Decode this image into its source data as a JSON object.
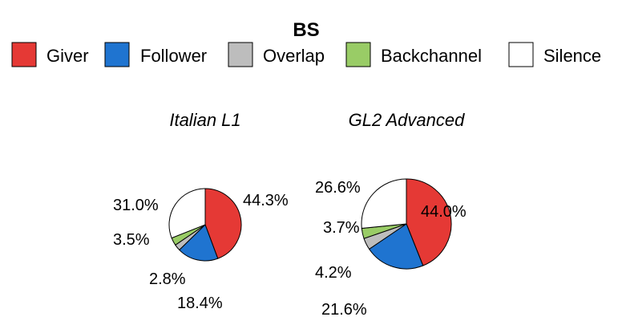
{
  "chart_data": {
    "type": "pie",
    "title": "BS",
    "legend": {
      "placement": "top",
      "entries": [
        {
          "label": "Giver",
          "color": "#e53935"
        },
        {
          "label": "Follower",
          "color": "#1f74d0"
        },
        {
          "label": "Overlap",
          "color": "#bdbdbd"
        },
        {
          "label": "Backchannel",
          "color": "#99cc66"
        },
        {
          "label": "Silence",
          "color": "#ffffff"
        }
      ]
    },
    "pies": [
      {
        "title": "Italian L1",
        "slices": [
          {
            "category": "Giver",
            "value": 44.3,
            "label": "44.3%"
          },
          {
            "category": "Follower",
            "value": 18.4,
            "label": "18.4%"
          },
          {
            "category": "Overlap",
            "value": 2.8,
            "label": "2.8%"
          },
          {
            "category": "Backchannel",
            "value": 3.5,
            "label": "3.5%"
          },
          {
            "category": "Silence",
            "value": 31.0,
            "label": "31.0%"
          }
        ]
      },
      {
        "title": "GL2 Advanced",
        "slices": [
          {
            "category": "Giver",
            "value": 44.0,
            "label": "44.0%"
          },
          {
            "category": "Follower",
            "value": 21.6,
            "label": "21.6%"
          },
          {
            "category": "Overlap",
            "value": 4.2,
            "label": "4.2%"
          },
          {
            "category": "Backchannel",
            "value": 3.7,
            "label": "3.7%"
          },
          {
            "category": "Silence",
            "value": 26.6,
            "label": "26.6%"
          }
        ]
      }
    ]
  }
}
